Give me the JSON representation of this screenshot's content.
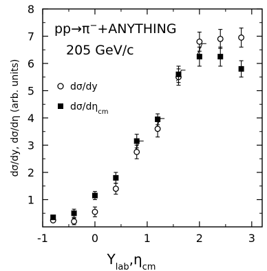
{
  "chart_data": {
    "type": "scatter",
    "title": "",
    "annotation": {
      "line1": "pp→π",
      "line1_sup": "−",
      "line1_rest": "+ANYTHING",
      "line2": "205 GeV/c"
    },
    "xlabel": {
      "main": "Y",
      "sub1": "lab",
      "sep": ",η",
      "sub2": "cm"
    },
    "ylabel": "dσ/dy, dσ/dη (arb. units)",
    "xlim": [
      -1,
      3.2
    ],
    "ylim": [
      0,
      8
    ],
    "xticks": [
      -1,
      0,
      1,
      2,
      3
    ],
    "xtick_labels": [
      "-1",
      "0",
      "1",
      "2",
      "3"
    ],
    "yticks": [
      1,
      2,
      3,
      4,
      5,
      6,
      7,
      8
    ],
    "ytick_labels": [
      "1",
      "2",
      "3",
      "4",
      "5",
      "6",
      "7",
      "8"
    ],
    "grid": false,
    "legend_position": "left",
    "series": [
      {
        "name": "dσ/dy",
        "name_sub": "",
        "marker": "open-circle",
        "points": [
          {
            "x": -0.8,
            "y": 0.24,
            "err": 0.07
          },
          {
            "x": -0.4,
            "y": 0.2,
            "err": 0.12
          },
          {
            "x": 0.0,
            "y": 0.55,
            "err": 0.18
          },
          {
            "x": 0.4,
            "y": 1.4,
            "err": 0.2
          },
          {
            "x": 0.8,
            "y": 2.75,
            "err": 0.25
          },
          {
            "x": 1.2,
            "y": 3.6,
            "err": 0.3
          },
          {
            "x": 1.6,
            "y": 5.5,
            "err": 0.3
          },
          {
            "x": 2.0,
            "y": 6.8,
            "err": 0.35
          },
          {
            "x": 2.4,
            "y": 6.9,
            "err": 0.35
          },
          {
            "x": 2.8,
            "y": 6.95,
            "err": 0.35
          }
        ]
      },
      {
        "name": "dσ/dη",
        "name_sub": "cm",
        "marker": "filled-square",
        "points": [
          {
            "x": -0.8,
            "y": 0.35,
            "err": 0.06
          },
          {
            "x": -0.4,
            "y": 0.5,
            "err": 0.15
          },
          {
            "x": 0.0,
            "y": 1.15,
            "err": 0.15
          },
          {
            "x": 0.4,
            "y": 1.8,
            "err": 0.2
          },
          {
            "x": 0.8,
            "y": 3.15,
            "err": 0.25
          },
          {
            "x": 1.2,
            "y": 3.95,
            "err": 0.2
          },
          {
            "x": 1.6,
            "y": 5.6,
            "err": 0.3
          },
          {
            "x": 2.0,
            "y": 6.25,
            "err": 0.35
          },
          {
            "x": 2.4,
            "y": 6.25,
            "err": 0.35
          },
          {
            "x": 2.8,
            "y": 5.8,
            "err": 0.3
          }
        ]
      }
    ],
    "bracket_marks": [
      0.8,
      1.2,
      1.6,
      2.0
    ]
  }
}
